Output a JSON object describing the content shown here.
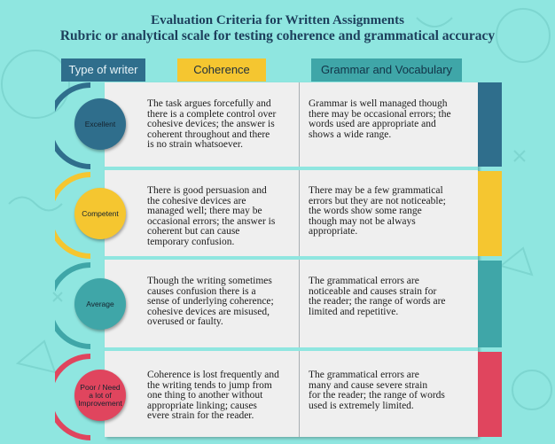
{
  "title": {
    "line1": "Evaluation Criteria for Written Assignments",
    "line2": "Rubric or analytical scale for testing coherence and grammatical accuracy"
  },
  "headers": {
    "type": "Type of writer",
    "coherence": "Coherence",
    "grammar": "Grammar and Vocabulary"
  },
  "rows": [
    {
      "level": "Excellent",
      "color": "#2f6e8c",
      "coherence": [
        "The task argues forcefully and",
        "there is a complete control over",
        "cohesive devices; the answer is",
        "coherent throughout and there",
        "is no strain whatsoever."
      ],
      "grammar": [
        "Grammar is well managed though",
        "there may be occasional errors; the",
        "words used are appropriate and",
        "shows a wide range."
      ]
    },
    {
      "level": "Competent",
      "color": "#f5c630",
      "coherence": [
        "There is good persuasion and",
        "the cohesive devices are",
        "managed well; there may be",
        "occasional errors; the answer is",
        "coherent but can cause",
        "temporary confusion."
      ],
      "grammar": [
        "There may be a few grammatical",
        "errors but they are not noticeable;",
        "the words show some range",
        "though may not be always",
        "appropriate."
      ]
    },
    {
      "level": "Average",
      "color": "#3fa6a8",
      "coherence": [
        "Though the writing sometimes",
        "causes confusion there is a",
        "sense of underlying coherence;",
        "cohesive devices are misused,",
        "overused or faulty."
      ],
      "grammar": [
        "The grammatical errors are",
        "noticeable and causes strain for",
        "the reader; the range of words are",
        "limited and repetitive."
      ]
    },
    {
      "level_lines": [
        "Poor / Need",
        "a lot of",
        "Improvement"
      ],
      "color": "#e0455e",
      "coherence": [
        "Coherence is lost frequently and",
        "the writing tends to jump from",
        "one thing to another without",
        "appropriate linking; causes",
        "evere strain for the reader."
      ],
      "grammar": [
        "The grammatical errors are",
        "many and cause severe strain",
        "for the reader; the range of words",
        "used is extremely limited."
      ]
    }
  ]
}
